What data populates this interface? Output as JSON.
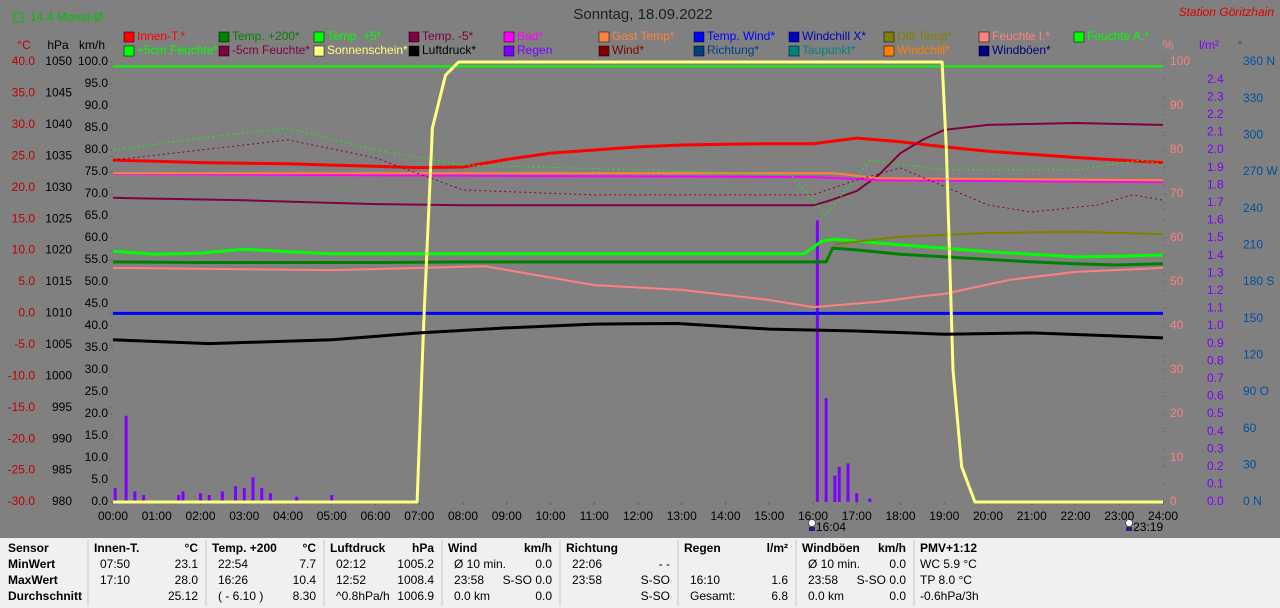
{
  "chart_data": {
    "type": "line",
    "title": "Sonntag, 18.09.2022",
    "station": "Station Göritzhain",
    "month_avg": "14.4 Monat-Ø",
    "annotations": [
      "16:04",
      "23:19"
    ],
    "xlim": [
      0,
      24
    ],
    "xticks": [
      {
        "value": 0,
        "label": "00:00"
      },
      {
        "value": 1,
        "label": "01:00"
      },
      {
        "value": 2,
        "label": "02:00"
      },
      {
        "value": 3,
        "label": "03:00"
      },
      {
        "value": 4,
        "label": "04:00"
      },
      {
        "value": 5,
        "label": "05:00"
      },
      {
        "value": 6,
        "label": "06:00"
      },
      {
        "value": 7,
        "label": "07:00"
      },
      {
        "value": 8,
        "label": "08:00"
      },
      {
        "value": 9,
        "label": "09:00"
      },
      {
        "value": 10,
        "label": "10:00"
      },
      {
        "value": 11,
        "label": "11:00"
      },
      {
        "value": 12,
        "label": "12:00"
      },
      {
        "value": 13,
        "label": "13:00"
      },
      {
        "value": 14,
        "label": "14:00"
      },
      {
        "value": 15,
        "label": "15:00"
      },
      {
        "value": 16,
        "label": "16:00"
      },
      {
        "value": 17,
        "label": "17:00"
      },
      {
        "value": 18,
        "label": "18:00"
      },
      {
        "value": 19,
        "label": "19:00"
      },
      {
        "value": 20,
        "label": "20:00"
      },
      {
        "value": 21,
        "label": "21:00"
      },
      {
        "value": 22,
        "label": "22:00"
      },
      {
        "value": 23,
        "label": "23:00"
      },
      {
        "value": 24,
        "label": "24:00"
      }
    ],
    "axes": [
      {
        "unit": "°C",
        "color": "#c00000",
        "lim": [
          -30,
          40
        ],
        "ticks": [
          {
            "value": 40,
            "label": "40.0"
          },
          {
            "value": 35,
            "label": "35.0"
          },
          {
            "value": 30,
            "label": "30.0"
          },
          {
            "value": 25,
            "label": "25.0"
          },
          {
            "value": 20,
            "label": "20.0"
          },
          {
            "value": 15,
            "label": "15.0"
          },
          {
            "value": 10,
            "label": "10.0"
          },
          {
            "value": 5,
            "label": "5.0"
          },
          {
            "value": 0,
            "label": "0.0"
          },
          {
            "value": -5,
            "label": "-5.0"
          },
          {
            "value": -10,
            "label": "-10.0"
          },
          {
            "value": -15,
            "label": "-15.0"
          },
          {
            "value": -20,
            "label": "-20.0"
          },
          {
            "value": -25,
            "label": "-25.0"
          },
          {
            "value": -30,
            "label": "-30.0"
          }
        ]
      },
      {
        "unit": "hPa",
        "color": "#000000",
        "lim": [
          980,
          1050
        ],
        "ticks": [
          1050,
          1045,
          1040,
          1035,
          1030,
          1025,
          1020,
          1015,
          1010,
          1005,
          1000,
          995,
          990,
          985,
          980
        ]
      },
      {
        "unit": "km/h",
        "color": "#000000",
        "lim": [
          0,
          100
        ],
        "ticks": [
          {
            "value": 100,
            "label": "100.0"
          },
          {
            "value": 95,
            "label": "95.0"
          },
          {
            "value": 90,
            "label": "90.0"
          },
          {
            "value": 85,
            "label": "85.0"
          },
          {
            "value": 80,
            "label": "80.0"
          },
          {
            "value": 75,
            "label": "75.0"
          },
          {
            "value": 70,
            "label": "70.0"
          },
          {
            "value": 65,
            "label": "65.0"
          },
          {
            "value": 60,
            "label": "60.0"
          },
          {
            "value": 55,
            "label": "55.0"
          },
          {
            "value": 50,
            "label": "50.0"
          },
          {
            "value": 45,
            "label": "45.0"
          },
          {
            "value": 40,
            "label": "40.0"
          },
          {
            "value": 35,
            "label": "35.0"
          },
          {
            "value": 30,
            "label": "30.0"
          },
          {
            "value": 25,
            "label": "25.0"
          },
          {
            "value": 20,
            "label": "20.0"
          },
          {
            "value": 15,
            "label": "15.0"
          },
          {
            "value": 10,
            "label": "10.0"
          },
          {
            "value": 5,
            "label": "5.0"
          },
          {
            "value": 0,
            "label": "0.0"
          }
        ]
      },
      {
        "unit": "%",
        "color": "#ff8080",
        "lim": [
          0,
          100
        ],
        "ticks": [
          100,
          90,
          80,
          70,
          60,
          50,
          40,
          30,
          20,
          10,
          0
        ]
      },
      {
        "unit": "l/m²",
        "color": "#8000ff",
        "lim": [
          0,
          2.5
        ],
        "ticks": [
          2.4,
          2.3,
          2.2,
          2.1,
          {
            "value": 2,
            "label": "2.0"
          },
          1.9,
          1.8,
          1.7,
          1.6,
          1.5,
          1.4,
          1.3,
          1.2,
          1.1,
          {
            "value": 1,
            "label": "1.0"
          },
          0.9,
          0.8,
          0.7,
          0.6,
          0.5,
          0.4,
          0.3,
          0.2,
          0.1,
          {
            "value": 0,
            "label": "0.0"
          }
        ]
      },
      {
        "unit": "°",
        "color": "#0050a0",
        "lim": [
          0,
          360
        ],
        "ticks": [
          {
            "value": 360,
            "label": "360 N"
          },
          330,
          300,
          {
            "value": 270,
            "label": "270 W"
          },
          240,
          210,
          {
            "value": 180,
            "label": "180 S"
          },
          150,
          120,
          {
            "value": 90,
            "label": "90 O"
          },
          60,
          30,
          {
            "value": 0,
            "label": "0 N"
          }
        ]
      }
    ],
    "series": [
      {
        "name": "Innen-T.*",
        "color": "#ff0000",
        "axis": 0,
        "width": 3,
        "x": [
          0,
          1,
          2,
          3,
          4,
          5,
          6,
          7,
          8,
          9,
          10,
          11,
          12,
          13,
          14,
          15,
          16,
          17,
          18,
          19,
          20,
          21,
          22,
          23,
          24
        ],
        "values": [
          24.4,
          24.2,
          24.0,
          23.9,
          23.8,
          23.6,
          23.4,
          23.2,
          23.3,
          24.5,
          25.5,
          26.0,
          26.5,
          26.8,
          26.9,
          27.0,
          27.0,
          27.9,
          27.3,
          26.5,
          25.8,
          25.3,
          24.8,
          24.4,
          24.0
        ]
      },
      {
        "name": "Temp. +200*",
        "color": "#008000",
        "axis": 0,
        "width": 3,
        "x": [
          0,
          2,
          4,
          6,
          8,
          10,
          12,
          14,
          16,
          16.3,
          16.45,
          17,
          18,
          19,
          20,
          21,
          22,
          22.9,
          24
        ],
        "values": [
          8.2,
          8.1,
          8.1,
          8.1,
          8.2,
          8.2,
          8.2,
          8.2,
          8.2,
          8.2,
          10.4,
          10.1,
          9.4,
          9.0,
          8.6,
          8.2,
          7.9,
          7.7,
          7.9
        ]
      },
      {
        "name": "Temp. +5*",
        "color": "#00ff00",
        "axis": 0,
        "width": 3,
        "x": [
          0,
          1,
          2,
          3,
          4,
          5,
          8,
          12,
          15.8,
          16.2,
          16.5,
          17,
          18,
          19,
          20,
          21,
          22,
          23,
          24
        ],
        "values": [
          9.9,
          9.4,
          9.6,
          10.2,
          9.8,
          9.5,
          9.5,
          9.5,
          9.5,
          11.5,
          11.8,
          11.5,
          10.9,
          10.4,
          9.8,
          9.4,
          9.0,
          9.1,
          9.3
        ]
      },
      {
        "name": "Temp. -5*",
        "color": "#800040",
        "axis": 0,
        "width": 2,
        "x": [
          0,
          3,
          6,
          8,
          12,
          16,
          16.4,
          17,
          17.5,
          18,
          18.5,
          19,
          20,
          22,
          24
        ],
        "values": [
          18.4,
          18.0,
          17.4,
          17.2,
          17.2,
          17.2,
          18.0,
          19.5,
          22.0,
          25.5,
          27.6,
          29.2,
          30.0,
          30.3,
          30.0
        ]
      },
      {
        "name": "Bad*",
        "color": "#ff00ff",
        "axis": 0,
        "width": 2,
        "x": [
          0,
          8,
          16,
          17.5,
          24
        ],
        "values": [
          22.2,
          21.9,
          21.7,
          21.2,
          20.9
        ]
      },
      {
        "name": "Gast Temp*",
        "color": "#ff8040",
        "axis": 0,
        "width": 2,
        "x": [
          0,
          16.5,
          17.5,
          24
        ],
        "values": [
          22.3,
          22.3,
          21.5,
          21.2
        ]
      },
      {
        "name": "Temp. Wind*",
        "color": "#0000ff",
        "axis": 0,
        "width": 3,
        "x": [
          0,
          24
        ],
        "values": [
          0,
          0
        ]
      },
      {
        "name": "Windchill X*",
        "color": "#0000c0",
        "axis": 0,
        "width": 2,
        "x": [],
        "values": []
      },
      {
        "name": "Diff Temp*",
        "color": "#808000",
        "axis": 0,
        "width": 2,
        "x": [
          16.5,
          18,
          20,
          22,
          24
        ],
        "values": [
          11.0,
          12.2,
          12.8,
          13.0,
          12.6
        ]
      },
      {
        "name": "Feuchte I.*",
        "color": "#ff8080",
        "axis": 3,
        "width": 2,
        "x": [
          0,
          5,
          8.5,
          11,
          13,
          15,
          16,
          17.5,
          18.5,
          19,
          20.5,
          22,
          24
        ],
        "values": [
          53.2,
          52.7,
          53.6,
          49.3,
          48.2,
          45.9,
          44.3,
          45.5,
          46.8,
          47.3,
          50.5,
          52.3,
          53.2
        ]
      },
      {
        "name": "Feuchte A.*",
        "color": "#00ff00",
        "axis": 3,
        "width": 1,
        "style": "dotted",
        "x": [
          0,
          2,
          4,
          6,
          8,
          12,
          15.5,
          16.3,
          17.3,
          19,
          22,
          23.5,
          24
        ],
        "values": [
          80,
          82.7,
          85,
          80,
          76.6,
          75.5,
          74.3,
          65.2,
          77.7,
          75.5,
          75.5,
          77.7,
          76.6
        ]
      },
      {
        "name": "+5cm Feuchte*",
        "color": "#00ff00",
        "axis": 3,
        "width": 2,
        "x": [
          0,
          24
        ],
        "values": [
          99,
          99
        ]
      },
      {
        "name": "-5cm Feuchte*",
        "color": "#800040",
        "axis": 3,
        "width": 1,
        "style": "dotted",
        "x": [
          0,
          4,
          6,
          8,
          11,
          16,
          17,
          18,
          20,
          21,
          22.5,
          23.3,
          24
        ],
        "values": [
          77.7,
          82.3,
          78.2,
          70.9,
          69.8,
          69.8,
          73.2,
          75.9,
          67.5,
          65.9,
          67.5,
          69.8,
          68.6
        ]
      },
      {
        "name": "Sonnenschein*",
        "color": "#ffff80",
        "axis": 3,
        "width": 3,
        "x": [
          0,
          6.95,
          7.1,
          7.3,
          7.6,
          7.9,
          18.95,
          19.05,
          19.2,
          19.4,
          19.7,
          24
        ],
        "values": [
          0,
          0,
          40,
          85,
          97,
          100,
          100,
          80,
          30,
          8,
          0,
          0
        ]
      },
      {
        "name": "Luftdruck*",
        "color": "#000000",
        "axis": 1,
        "width": 3,
        "x": [
          0,
          2.2,
          5,
          7,
          9,
          11,
          12.9,
          15,
          17,
          19,
          21,
          23,
          24
        ],
        "values": [
          1005.8,
          1005.2,
          1005.8,
          1006.9,
          1007.7,
          1008.3,
          1008.4,
          1007.5,
          1007.2,
          1006.7,
          1006.9,
          1006.4,
          1006.1
        ]
      },
      {
        "name": "Regen",
        "color": "#8000ff",
        "axis": 4,
        "mark": "bar",
        "x": [
          0.05,
          0.3,
          0.5,
          0.7,
          1.5,
          1.6,
          2.0,
          2.2,
          2.5,
          2.8,
          3.0,
          3.2,
          3.4,
          3.6,
          4.2,
          5.0,
          16.1,
          16.3,
          16.5,
          16.6,
          16.8,
          17.0,
          17.3
        ],
        "values": [
          0.08,
          0.49,
          0.06,
          0.04,
          0.04,
          0.06,
          0.05,
          0.04,
          0.06,
          0.09,
          0.08,
          0.14,
          0.08,
          0.05,
          0.03,
          0.04,
          1.6,
          0.59,
          0.15,
          0.2,
          0.22,
          0.05,
          0.02
        ]
      },
      {
        "name": "Wind*",
        "color": "#800000",
        "axis": 2,
        "x": [],
        "values": []
      },
      {
        "name": "Richtung*",
        "color": "#004080",
        "axis": 5,
        "x": [],
        "values": []
      },
      {
        "name": "Taupunkt*",
        "color": "#008080",
        "axis": 0,
        "x": [],
        "values": []
      },
      {
        "name": "Windchill*",
        "color": "#ff8000",
        "axis": 0,
        "x": [],
        "values": []
      },
      {
        "name": "Windböen*",
        "color": "#000080",
        "axis": 2,
        "x": [],
        "values": []
      }
    ]
  },
  "stats": {
    "title": "Sensor",
    "rows": [
      "MinWert",
      "MaxWert",
      "Durchschnitt"
    ],
    "groups": [
      {
        "title": "Innen-T.",
        "unit": "°C",
        "rows": [
          [
            "07:50",
            "23.1"
          ],
          [
            "17:10",
            "28.0"
          ],
          [
            null,
            "25.12"
          ]
        ]
      },
      {
        "title": "Temp. +200",
        "unit": "°C",
        "rows": [
          [
            "22:54",
            "7.7"
          ],
          [
            "16:26",
            "10.4"
          ],
          [
            "( - 6.10 )",
            "8.30"
          ]
        ]
      },
      {
        "title": "Luftdruck",
        "unit": "hPa",
        "rows": [
          [
            "02:12",
            "1005.2"
          ],
          [
            "12:52",
            "1008.4"
          ],
          [
            "^0.8hPa/h",
            "1006.9"
          ]
        ]
      },
      {
        "title": "Wind",
        "unit": "km/h",
        "rows": [
          [
            "Ø 10 min.",
            "0.0"
          ],
          [
            "23:58",
            "S-SO",
            "0.0"
          ],
          [
            "0.0 km",
            "0.0"
          ]
        ]
      },
      {
        "title": "Richtung",
        "rows": [
          [
            "22:06",
            "- -"
          ],
          [
            "23:58",
            "S-SO"
          ],
          [
            null,
            "S-SO"
          ]
        ]
      },
      {
        "title": "Regen",
        "unit": "l/m²",
        "rows": [
          [],
          [
            "16:10",
            "1.6"
          ],
          [
            "Gesamt:",
            "6.8"
          ]
        ]
      },
      {
        "title": "Windböen",
        "unit": "km/h",
        "rows": [
          [
            "Ø 10 min.",
            "0.0"
          ],
          [
            "23:58",
            "S-SO",
            "0.0"
          ],
          [
            "0.0 km",
            "0.0"
          ]
        ]
      },
      {
        "title": "PMV+1:12",
        "rows": [
          [
            "WC 5.9 °C"
          ],
          [
            "TP 8.0 °C"
          ],
          [
            "-0.6hPa/3h"
          ]
        ]
      }
    ]
  }
}
